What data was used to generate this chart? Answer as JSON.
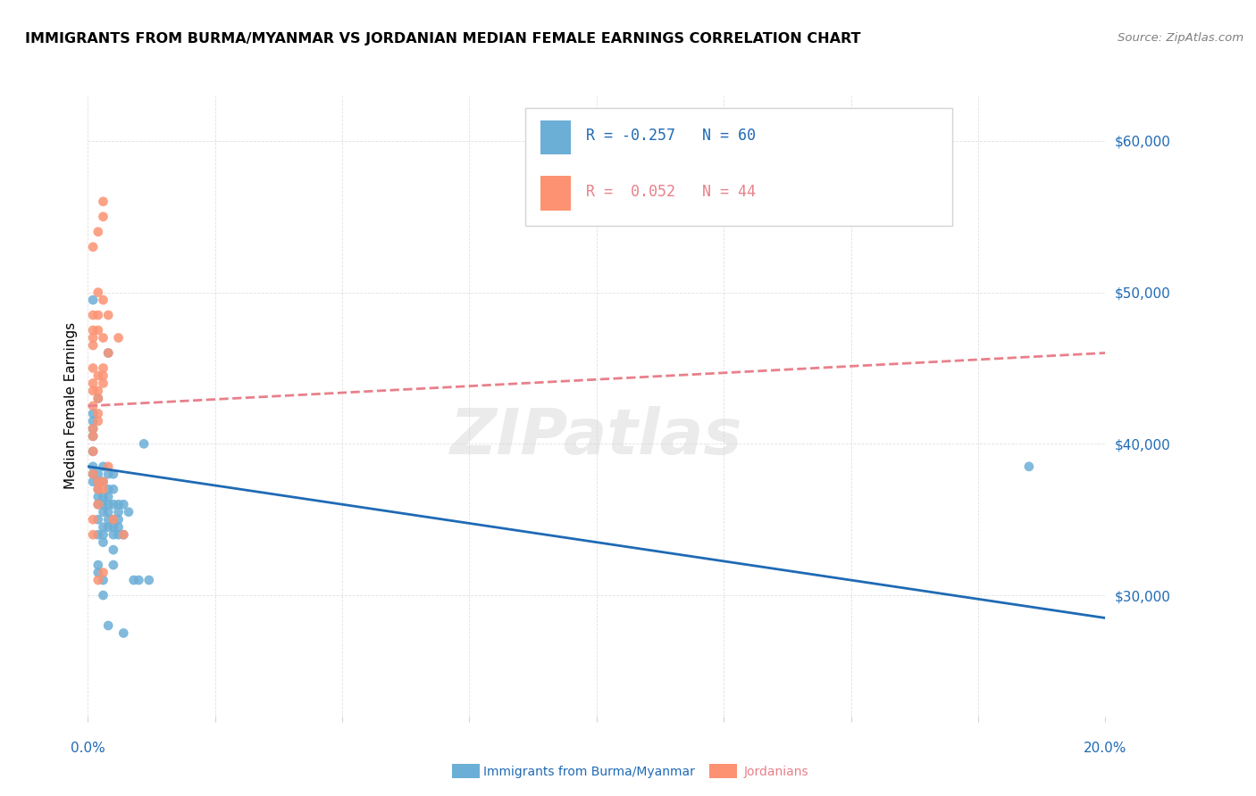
{
  "title": "IMMIGRANTS FROM BURMA/MYANMAR VS JORDANIAN MEDIAN FEMALE EARNINGS CORRELATION CHART",
  "source": "Source: ZipAtlas.com",
  "ylabel": "Median Female Earnings",
  "yticks": [
    30000,
    40000,
    50000,
    60000
  ],
  "ytick_labels": [
    "$30,000",
    "$40,000",
    "$50,000",
    "$60,000"
  ],
  "xlim": [
    0.0,
    0.2
  ],
  "ylim": [
    22000,
    63000
  ],
  "blue_color": "#6baed6",
  "pink_color": "#fc9272",
  "blue_line_color": "#1f6ab5",
  "pink_line_color": "#e8808a",
  "blue_scatter": [
    [
      0.001,
      49500
    ],
    [
      0.001,
      42000
    ],
    [
      0.001,
      41500
    ],
    [
      0.001,
      41000
    ],
    [
      0.001,
      40500
    ],
    [
      0.001,
      39500
    ],
    [
      0.001,
      38500
    ],
    [
      0.001,
      38000
    ],
    [
      0.001,
      37500
    ],
    [
      0.002,
      43000
    ],
    [
      0.002,
      38000
    ],
    [
      0.002,
      37500
    ],
    [
      0.002,
      37000
    ],
    [
      0.002,
      36500
    ],
    [
      0.002,
      36000
    ],
    [
      0.002,
      35000
    ],
    [
      0.002,
      34000
    ],
    [
      0.002,
      32000
    ],
    [
      0.002,
      31500
    ],
    [
      0.003,
      38500
    ],
    [
      0.003,
      37500
    ],
    [
      0.003,
      36500
    ],
    [
      0.003,
      36000
    ],
    [
      0.003,
      35500
    ],
    [
      0.003,
      34500
    ],
    [
      0.003,
      34000
    ],
    [
      0.003,
      33500
    ],
    [
      0.003,
      31000
    ],
    [
      0.003,
      30000
    ],
    [
      0.004,
      46000
    ],
    [
      0.004,
      38000
    ],
    [
      0.004,
      37000
    ],
    [
      0.004,
      36500
    ],
    [
      0.004,
      36000
    ],
    [
      0.004,
      35500
    ],
    [
      0.004,
      35000
    ],
    [
      0.004,
      34500
    ],
    [
      0.004,
      28000
    ],
    [
      0.005,
      38000
    ],
    [
      0.005,
      37000
    ],
    [
      0.005,
      36000
    ],
    [
      0.005,
      35000
    ],
    [
      0.005,
      34500
    ],
    [
      0.005,
      34000
    ],
    [
      0.005,
      33000
    ],
    [
      0.005,
      32000
    ],
    [
      0.006,
      36000
    ],
    [
      0.006,
      35500
    ],
    [
      0.006,
      35000
    ],
    [
      0.006,
      34500
    ],
    [
      0.006,
      34000
    ],
    [
      0.007,
      36000
    ],
    [
      0.007,
      34000
    ],
    [
      0.007,
      27500
    ],
    [
      0.008,
      35500
    ],
    [
      0.009,
      31000
    ],
    [
      0.01,
      31000
    ],
    [
      0.011,
      40000
    ],
    [
      0.012,
      31000
    ],
    [
      0.185,
      38500
    ]
  ],
  "pink_scatter": [
    [
      0.001,
      53000
    ],
    [
      0.001,
      48500
    ],
    [
      0.001,
      47500
    ],
    [
      0.001,
      47000
    ],
    [
      0.001,
      46500
    ],
    [
      0.001,
      45000
    ],
    [
      0.001,
      44000
    ],
    [
      0.001,
      43500
    ],
    [
      0.001,
      42500
    ],
    [
      0.001,
      41000
    ],
    [
      0.001,
      40500
    ],
    [
      0.001,
      39500
    ],
    [
      0.001,
      38000
    ],
    [
      0.001,
      35000
    ],
    [
      0.001,
      34000
    ],
    [
      0.002,
      54000
    ],
    [
      0.002,
      50000
    ],
    [
      0.002,
      48500
    ],
    [
      0.002,
      47500
    ],
    [
      0.002,
      44500
    ],
    [
      0.002,
      43500
    ],
    [
      0.002,
      43000
    ],
    [
      0.002,
      42000
    ],
    [
      0.002,
      41500
    ],
    [
      0.002,
      37500
    ],
    [
      0.002,
      37000
    ],
    [
      0.002,
      36000
    ],
    [
      0.002,
      31000
    ],
    [
      0.003,
      56000
    ],
    [
      0.003,
      55000
    ],
    [
      0.003,
      49500
    ],
    [
      0.003,
      47000
    ],
    [
      0.003,
      45000
    ],
    [
      0.003,
      44500
    ],
    [
      0.003,
      44000
    ],
    [
      0.003,
      37500
    ],
    [
      0.003,
      37000
    ],
    [
      0.003,
      31500
    ],
    [
      0.004,
      48500
    ],
    [
      0.004,
      46000
    ],
    [
      0.004,
      38500
    ],
    [
      0.005,
      35000
    ],
    [
      0.006,
      47000
    ],
    [
      0.007,
      34000
    ]
  ],
  "watermark": "ZIPatlas",
  "blue_trendline_x": [
    0.0,
    0.2
  ],
  "blue_trendline_y": [
    38500,
    28500
  ],
  "pink_trendline_x": [
    0.0,
    0.2
  ],
  "pink_trendline_y": [
    42500,
    46000
  ],
  "legend_blue_text": "R = -0.257   N = 60",
  "legend_pink_text": "R =  0.052   N = 44",
  "bottom_label_blue": "Immigrants from Burma/Myanmar",
  "bottom_label_pink": "Jordanians"
}
